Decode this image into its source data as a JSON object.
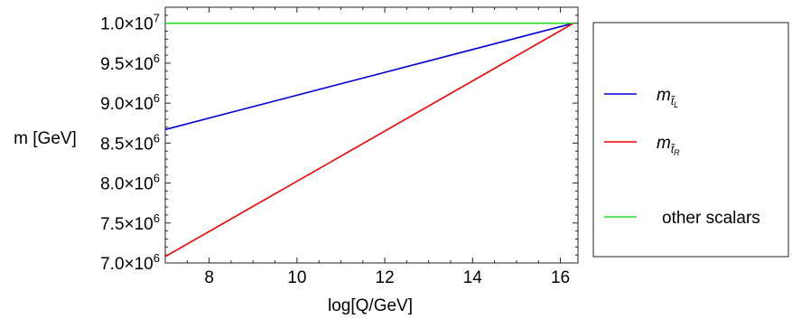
{
  "chart_data": {
    "type": "line",
    "title": "",
    "xlabel": "log[Q/GeV]",
    "ylabel": "m [GeV]",
    "xlim": [
      7.0,
      16.4
    ],
    "ylim": [
      7000000.0,
      10200000.0
    ],
    "x_ticks": [
      {
        "value": 8,
        "label": "8"
      },
      {
        "value": 10,
        "label": "10"
      },
      {
        "value": 12,
        "label": "12"
      },
      {
        "value": 14,
        "label": "14"
      },
      {
        "value": 16,
        "label": "16"
      }
    ],
    "y_ticks": [
      {
        "value": 7000000,
        "mantissa": "7.0",
        "times": "×10",
        "exp": "6"
      },
      {
        "value": 7500000,
        "mantissa": "7.5",
        "times": "×10",
        "exp": "6"
      },
      {
        "value": 8000000,
        "mantissa": "8.0",
        "times": "×10",
        "exp": "6"
      },
      {
        "value": 8500000,
        "mantissa": "8.5",
        "times": "×10",
        "exp": "6"
      },
      {
        "value": 9000000,
        "mantissa": "9.0",
        "times": "×10",
        "exp": "6"
      },
      {
        "value": 9500000,
        "mantissa": "9.5",
        "times": "×10",
        "exp": "6"
      },
      {
        "value": 10000000,
        "mantissa": "1.0",
        "times": "×10",
        "exp": "7"
      }
    ],
    "grid": false,
    "legend_position": "right",
    "series": [
      {
        "legend_base": "m",
        "legend_sub": "t̃",
        "legend_subsub": "L",
        "color": "#0000dd",
        "x": [
          7.0,
          16.3
        ],
        "y": [
          8670000,
          10000000
        ]
      },
      {
        "legend_base": "m",
        "legend_sub": "t̃",
        "legend_subsub": "R",
        "color": "#ee0000",
        "x": [
          7.0,
          16.3
        ],
        "y": [
          7080000,
          10000000
        ]
      },
      {
        "legend_base": "other scalars",
        "legend_sub": "",
        "legend_subsub": "",
        "color": "#22dd22",
        "x": [
          7.0,
          16.3
        ],
        "y": [
          10000000,
          10000000
        ]
      }
    ]
  }
}
